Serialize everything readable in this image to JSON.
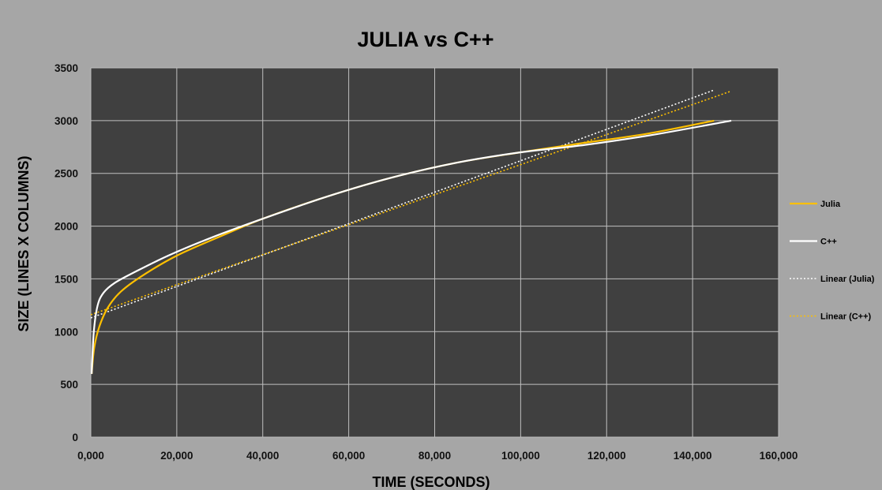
{
  "colors": {
    "background": "#a6a6a6",
    "plot_area": "#404040",
    "gridline": "#bfbfbf",
    "julia": "#ffc000",
    "cpp": "#ffffff"
  },
  "chart_data": {
    "type": "line",
    "title": "JULIA vs C++",
    "xlabel": "TIME (SECONDS)",
    "ylabel": "SIZE (LINES X COLUMNS)",
    "xlim": [
      0,
      160000
    ],
    "ylim": [
      0,
      3500
    ],
    "x_ticks": [
      0,
      20000,
      40000,
      60000,
      80000,
      100000,
      120000,
      140000,
      160000
    ],
    "x_tick_labels": [
      "0,000",
      "20,000",
      "40,000",
      "60,000",
      "80,000",
      "100,000",
      "120,000",
      "140,000",
      "160,000"
    ],
    "y_ticks": [
      0,
      500,
      1000,
      1500,
      2000,
      2500,
      3000,
      3500
    ],
    "y_tick_labels": [
      "0",
      "500",
      "1000",
      "1500",
      "2000",
      "2500",
      "3000",
      "3500"
    ],
    "grid": true,
    "legend_position": "right",
    "series": [
      {
        "name": "Julia",
        "style": "solid",
        "color": "#ffc000",
        "x": [
          200,
          800,
          2000,
          4000,
          7000,
          12000,
          20000,
          30000,
          40000,
          55000,
          70000,
          85000,
          100000,
          115000,
          130000,
          145000
        ],
        "y": [
          600,
          850,
          1050,
          1230,
          1380,
          1530,
          1720,
          1900,
          2070,
          2280,
          2460,
          2600,
          2700,
          2790,
          2880,
          3000
        ]
      },
      {
        "name": "C++",
        "style": "solid",
        "color": "#ffffff",
        "x": [
          200,
          700,
          1600,
          3000,
          5500,
          10000,
          18000,
          28000,
          40000,
          55000,
          70000,
          85000,
          100000,
          115000,
          130000,
          149000
        ],
        "y": [
          600,
          1000,
          1250,
          1370,
          1460,
          1560,
          1720,
          1890,
          2070,
          2280,
          2460,
          2600,
          2700,
          2770,
          2860,
          3000
        ]
      },
      {
        "name": "Linear (Julia)",
        "style": "dotted",
        "color": "#ffffff",
        "x": [
          0,
          145000
        ],
        "y": [
          1130,
          3290
        ]
      },
      {
        "name": "Linear (C++)",
        "style": "dotted",
        "color": "#ffc000",
        "x": [
          0,
          149000
        ],
        "y": [
          1160,
          3280
        ]
      }
    ]
  }
}
